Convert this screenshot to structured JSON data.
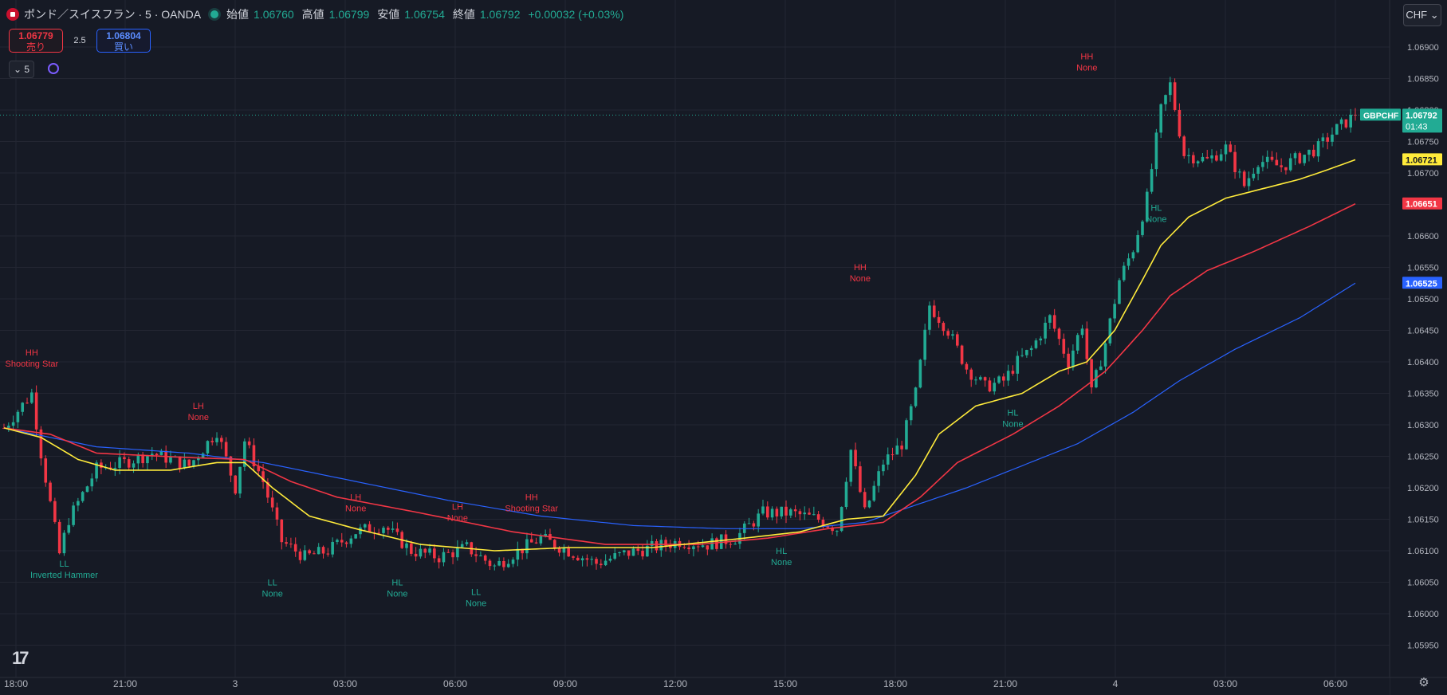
{
  "header": {
    "symbol": "ポンド／スイスフラン · 5 · OANDA",
    "open_label": "始値",
    "open": "1.06760",
    "high_label": "高値",
    "high": "1.06799",
    "low_label": "安値",
    "low": "1.06754",
    "close_label": "終値",
    "close": "1.06792",
    "change": "+0.00032 (+0.03%)"
  },
  "trade": {
    "sell_price": "1.06779",
    "sell_label": "売り",
    "spread": "2.5",
    "buy_price": "1.06804",
    "buy_label": "買い"
  },
  "interval": "5",
  "currency": "CHF",
  "logo": "17",
  "colors": {
    "up": "#22ab94",
    "down": "#f23645",
    "ma_fast": "#ffeb3b",
    "ma_mid": "#f23645",
    "ma_slow": "#2962ff",
    "bg": "#161a25",
    "grid": "#232632",
    "text": "#b2b5be"
  },
  "chart_data": {
    "type": "candlestick",
    "symbol": "GBPCHF",
    "interval_min": 5,
    "x_ticks": [
      "18:00",
      "21:00",
      "3",
      "03:00",
      "06:00",
      "09:00",
      "12:00",
      "15:00",
      "18:00",
      "21:00",
      "4",
      "03:00",
      "06:00"
    ],
    "y_ticks": [
      "1.06900",
      "1.06850",
      "1.06800",
      "1.06750",
      "1.06700",
      "1.06650",
      "1.06600",
      "1.06550",
      "1.06500",
      "1.06450",
      "1.06400",
      "1.06350",
      "1.06300",
      "1.06250",
      "1.06200",
      "1.06150",
      "1.06100",
      "1.06050",
      "1.06000",
      "1.05950"
    ],
    "ylim": [
      1.05925,
      1.06935
    ],
    "price_path": [
      {
        "i": 0,
        "p": 1.06295
      },
      {
        "i": 6,
        "p": 1.0635
      },
      {
        "i": 8,
        "p": 1.06255
      },
      {
        "i": 12,
        "p": 1.06095
      },
      {
        "i": 14,
        "p": 1.0615
      },
      {
        "i": 20,
        "p": 1.0623
      },
      {
        "i": 26,
        "p": 1.0624
      },
      {
        "i": 32,
        "p": 1.06255
      },
      {
        "i": 40,
        "p": 1.06235
      },
      {
        "i": 46,
        "p": 1.0629
      },
      {
        "i": 50,
        "p": 1.062
      },
      {
        "i": 52,
        "p": 1.06275
      },
      {
        "i": 56,
        "p": 1.0621
      },
      {
        "i": 60,
        "p": 1.06115
      },
      {
        "i": 65,
        "p": 1.0609
      },
      {
        "i": 70,
        "p": 1.061
      },
      {
        "i": 76,
        "p": 1.0613
      },
      {
        "i": 82,
        "p": 1.0614
      },
      {
        "i": 88,
        "p": 1.061
      },
      {
        "i": 94,
        "p": 1.0609
      },
      {
        "i": 100,
        "p": 1.06105
      },
      {
        "i": 106,
        "p": 1.06075
      },
      {
        "i": 110,
        "p": 1.06095
      },
      {
        "i": 116,
        "p": 1.0612
      },
      {
        "i": 122,
        "p": 1.061
      },
      {
        "i": 128,
        "p": 1.0608
      },
      {
        "i": 134,
        "p": 1.06095
      },
      {
        "i": 140,
        "p": 1.06105
      },
      {
        "i": 146,
        "p": 1.06115
      },
      {
        "i": 152,
        "p": 1.0611
      },
      {
        "i": 158,
        "p": 1.0612
      },
      {
        "i": 164,
        "p": 1.0616
      },
      {
        "i": 170,
        "p": 1.0616
      },
      {
        "i": 176,
        "p": 1.0615
      },
      {
        "i": 180,
        "p": 1.06135
      },
      {
        "i": 183,
        "p": 1.0626
      },
      {
        "i": 186,
        "p": 1.0616
      },
      {
        "i": 190,
        "p": 1.0624
      },
      {
        "i": 194,
        "p": 1.0627
      },
      {
        "i": 197,
        "p": 1.0635
      },
      {
        "i": 200,
        "p": 1.0649
      },
      {
        "i": 204,
        "p": 1.0645
      },
      {
        "i": 208,
        "p": 1.0639
      },
      {
        "i": 212,
        "p": 1.0636
      },
      {
        "i": 216,
        "p": 1.0637
      },
      {
        "i": 219,
        "p": 1.064
      },
      {
        "i": 222,
        "p": 1.0642
      },
      {
        "i": 226,
        "p": 1.0647
      },
      {
        "i": 230,
        "p": 1.064
      },
      {
        "i": 233,
        "p": 1.0646
      },
      {
        "i": 235,
        "p": 1.0635
      },
      {
        "i": 238,
        "p": 1.0643
      },
      {
        "i": 241,
        "p": 1.0653
      },
      {
        "i": 244,
        "p": 1.0658
      },
      {
        "i": 247,
        "p": 1.0666
      },
      {
        "i": 250,
        "p": 1.068
      },
      {
        "i": 252,
        "p": 1.0684
      },
      {
        "i": 255,
        "p": 1.0673
      },
      {
        "i": 260,
        "p": 1.0672
      },
      {
        "i": 264,
        "p": 1.0674
      },
      {
        "i": 268,
        "p": 1.0668
      },
      {
        "i": 271,
        "p": 1.0672
      },
      {
        "i": 276,
        "p": 1.0671
      },
      {
        "i": 280,
        "p": 1.06725
      },
      {
        "i": 284,
        "p": 1.0674
      },
      {
        "i": 288,
        "p": 1.0677
      },
      {
        "i": 292,
        "p": 1.06792
      }
    ],
    "ma_fast": [
      {
        "i": 0,
        "p": 1.06295
      },
      {
        "i": 8,
        "p": 1.0628
      },
      {
        "i": 16,
        "p": 1.06245
      },
      {
        "i": 24,
        "p": 1.06228
      },
      {
        "i": 36,
        "p": 1.06228
      },
      {
        "i": 46,
        "p": 1.0624
      },
      {
        "i": 52,
        "p": 1.0624
      },
      {
        "i": 58,
        "p": 1.062
      },
      {
        "i": 66,
        "p": 1.06155
      },
      {
        "i": 76,
        "p": 1.06135
      },
      {
        "i": 90,
        "p": 1.0611
      },
      {
        "i": 106,
        "p": 1.061
      },
      {
        "i": 122,
        "p": 1.06105
      },
      {
        "i": 140,
        "p": 1.06105
      },
      {
        "i": 160,
        "p": 1.0612
      },
      {
        "i": 172,
        "p": 1.0613
      },
      {
        "i": 182,
        "p": 1.0615
      },
      {
        "i": 190,
        "p": 1.06155
      },
      {
        "i": 197,
        "p": 1.0622
      },
      {
        "i": 202,
        "p": 1.06285
      },
      {
        "i": 210,
        "p": 1.0633
      },
      {
        "i": 220,
        "p": 1.0635
      },
      {
        "i": 228,
        "p": 1.06385
      },
      {
        "i": 234,
        "p": 1.064
      },
      {
        "i": 240,
        "p": 1.0645
      },
      {
        "i": 246,
        "p": 1.0653
      },
      {
        "i": 250,
        "p": 1.06585
      },
      {
        "i": 256,
        "p": 1.0663
      },
      {
        "i": 264,
        "p": 1.0666
      },
      {
        "i": 272,
        "p": 1.06675
      },
      {
        "i": 280,
        "p": 1.0669
      },
      {
        "i": 286,
        "p": 1.06705
      },
      {
        "i": 292,
        "p": 1.06721
      }
    ],
    "ma_mid": [
      {
        "i": 0,
        "p": 1.06295
      },
      {
        "i": 10,
        "p": 1.06285
      },
      {
        "i": 20,
        "p": 1.06255
      },
      {
        "i": 40,
        "p": 1.06248
      },
      {
        "i": 52,
        "p": 1.06245
      },
      {
        "i": 62,
        "p": 1.0621
      },
      {
        "i": 72,
        "p": 1.06185
      },
      {
        "i": 90,
        "p": 1.0616
      },
      {
        "i": 110,
        "p": 1.0613
      },
      {
        "i": 130,
        "p": 1.0611
      },
      {
        "i": 150,
        "p": 1.0611
      },
      {
        "i": 165,
        "p": 1.0612
      },
      {
        "i": 178,
        "p": 1.06135
      },
      {
        "i": 190,
        "p": 1.06145
      },
      {
        "i": 198,
        "p": 1.06185
      },
      {
        "i": 206,
        "p": 1.0624
      },
      {
        "i": 218,
        "p": 1.06285
      },
      {
        "i": 228,
        "p": 1.0633
      },
      {
        "i": 238,
        "p": 1.06385
      },
      {
        "i": 246,
        "p": 1.0645
      },
      {
        "i": 252,
        "p": 1.06505
      },
      {
        "i": 260,
        "p": 1.06545
      },
      {
        "i": 270,
        "p": 1.06575
      },
      {
        "i": 282,
        "p": 1.06615
      },
      {
        "i": 292,
        "p": 1.06651
      }
    ],
    "ma_slow": [
      {
        "i": 0,
        "p": 1.06295
      },
      {
        "i": 20,
        "p": 1.06265
      },
      {
        "i": 40,
        "p": 1.06255
      },
      {
        "i": 56,
        "p": 1.0624
      },
      {
        "i": 76,
        "p": 1.0621
      },
      {
        "i": 96,
        "p": 1.0618
      },
      {
        "i": 116,
        "p": 1.06155
      },
      {
        "i": 136,
        "p": 1.0614
      },
      {
        "i": 156,
        "p": 1.06135
      },
      {
        "i": 172,
        "p": 1.06135
      },
      {
        "i": 186,
        "p": 1.06145
      },
      {
        "i": 196,
        "p": 1.0617
      },
      {
        "i": 208,
        "p": 1.062
      },
      {
        "i": 220,
        "p": 1.06235
      },
      {
        "i": 232,
        "p": 1.0627
      },
      {
        "i": 244,
        "p": 1.0632
      },
      {
        "i": 254,
        "p": 1.0637
      },
      {
        "i": 266,
        "p": 1.0642
      },
      {
        "i": 280,
        "p": 1.0647
      },
      {
        "i": 292,
        "p": 1.06525
      }
    ],
    "annotations": [
      {
        "i": 6,
        "p": 1.06385,
        "text": [
          "HH",
          "Shooting Star"
        ],
        "pos": "above",
        "color": "down"
      },
      {
        "i": 13,
        "p": 1.0609,
        "text": [
          "LL",
          "Inverted Hammer"
        ],
        "pos": "below",
        "color": "up"
      },
      {
        "i": 42,
        "p": 1.063,
        "text": [
          "LH",
          "None"
        ],
        "pos": "above",
        "color": "down"
      },
      {
        "i": 58,
        "p": 1.0606,
        "text": [
          "LL",
          "None"
        ],
        "pos": "below",
        "color": "up"
      },
      {
        "i": 76,
        "p": 1.06155,
        "text": [
          "LH",
          "None"
        ],
        "pos": "above",
        "color": "down"
      },
      {
        "i": 85,
        "p": 1.0606,
        "text": [
          "HL",
          "None"
        ],
        "pos": "below",
        "color": "up"
      },
      {
        "i": 98,
        "p": 1.0614,
        "text": [
          "LH",
          "None"
        ],
        "pos": "above",
        "color": "down"
      },
      {
        "i": 102,
        "p": 1.06045,
        "text": [
          "LL",
          "None"
        ],
        "pos": "below",
        "color": "up"
      },
      {
        "i": 114,
        "p": 1.06155,
        "text": [
          "HH",
          "Shooting Star"
        ],
        "pos": "above",
        "color": "down"
      },
      {
        "i": 168,
        "p": 1.0611,
        "text": [
          "HL",
          "None"
        ],
        "pos": "below",
        "color": "up"
      },
      {
        "i": 185,
        "p": 1.0652,
        "text": [
          "HH",
          "None"
        ],
        "pos": "above",
        "color": "down"
      },
      {
        "i": 218,
        "p": 1.0633,
        "text": [
          "HL",
          "None"
        ],
        "pos": "below",
        "color": "up"
      },
      {
        "i": 234,
        "p": 1.06855,
        "text": [
          "HH",
          "None"
        ],
        "pos": "above",
        "color": "down"
      },
      {
        "i": 249,
        "p": 1.06655,
        "text": [
          "HL",
          "None"
        ],
        "pos": "below",
        "color": "up"
      }
    ],
    "price_labels": [
      {
        "text": "1.06792",
        "sub": "01:43",
        "p": 1.06792,
        "color": "up",
        "tag": "GBPCHF"
      },
      {
        "text": "1.06721",
        "p": 1.06721,
        "color": "ma_fast"
      },
      {
        "text": "1.06651",
        "p": 1.06651,
        "color": "ma_mid"
      },
      {
        "text": "1.06525",
        "p": 1.06525,
        "color": "ma_slow"
      }
    ]
  }
}
